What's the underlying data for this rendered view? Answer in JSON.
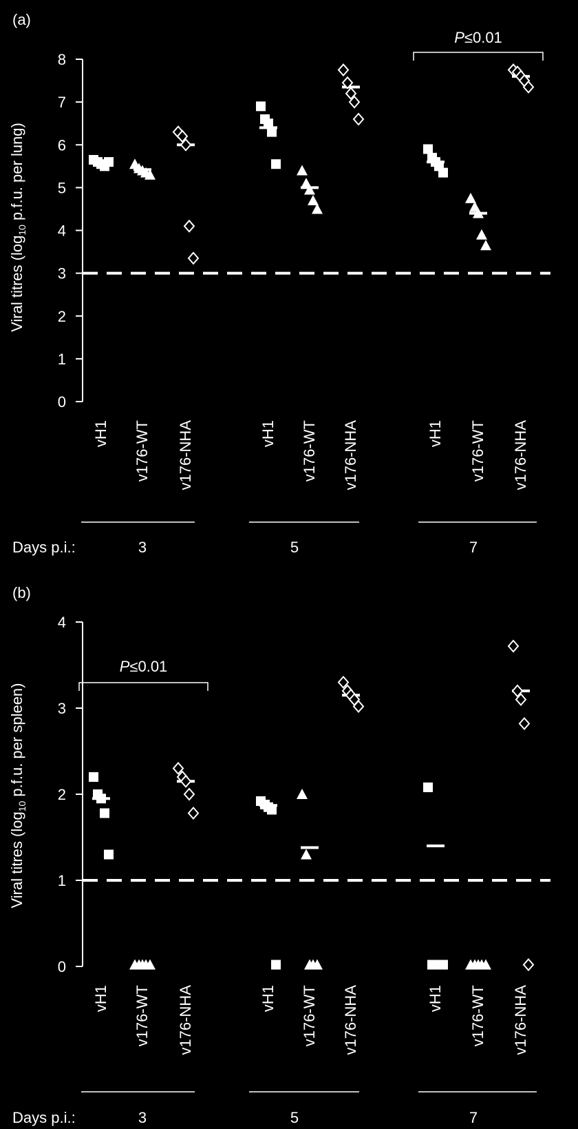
{
  "colors": {
    "background": "#000000",
    "foreground": "#ffffff"
  },
  "chart_data": [
    {
      "type": "scatter",
      "panel_label": "(a)",
      "ylabel_parts": [
        "Viral titres (log",
        "10",
        " p.f.u. per lung)"
      ],
      "ylim": [
        0,
        8
      ],
      "yticks": [
        "0",
        "1",
        "2",
        "3",
        "4",
        "5",
        "6",
        "7",
        "8"
      ],
      "detection_limit": 3,
      "categories": [
        "vH1",
        "v176-WT",
        "v176-NHA",
        "vH1",
        "v176-WT",
        "v176-NHA",
        "vH1",
        "v176-WT",
        "v176-NHA"
      ],
      "days_label": "Days p.i.:",
      "days": [
        "3",
        "5",
        "7"
      ],
      "series": [
        {
          "name": "vH1",
          "marker": "square",
          "groups": [
            {
              "day": "3",
              "points": [
                5.65,
                5.6,
                5.55,
                5.5,
                5.6
              ],
              "mean": 5.58
            },
            {
              "day": "5",
              "points": [
                6.9,
                6.6,
                6.5,
                6.3,
                5.55
              ],
              "mean": 6.4
            },
            {
              "day": "7",
              "points": [
                5.9,
                5.7,
                5.6,
                5.5,
                5.35
              ],
              "mean": 5.6
            }
          ]
        },
        {
          "name": "v176-WT",
          "marker": "triangle",
          "groups": [
            {
              "day": "3",
              "points": [
                5.55,
                5.45,
                5.4,
                5.35,
                5.3
              ],
              "mean": 5.42
            },
            {
              "day": "5",
              "points": [
                5.4,
                5.1,
                4.95,
                4.7,
                4.5
              ],
              "mean": 5.0
            },
            {
              "day": "7",
              "points": [
                4.75,
                4.55,
                4.4,
                3.9,
                3.65
              ],
              "mean": 4.4
            }
          ]
        },
        {
          "name": "v176-NHA",
          "marker": "diamond",
          "groups": [
            {
              "day": "3",
              "points": [
                6.3,
                6.2,
                6.0,
                4.1,
                3.35
              ],
              "mean": 6.0
            },
            {
              "day": "5",
              "points": [
                7.75,
                7.45,
                7.2,
                7.0,
                6.6
              ],
              "mean": 7.35
            },
            {
              "day": "7",
              "points": [
                7.75,
                7.7,
                7.6,
                7.5,
                7.35
              ],
              "mean": 7.6
            }
          ]
        }
      ],
      "significance": {
        "label": "P≤0.01",
        "from": 6,
        "to": 8
      }
    },
    {
      "type": "scatter",
      "panel_label": "(b)",
      "ylabel_parts": [
        "Viral titres (log",
        "10",
        " p.f.u. per spleen)"
      ],
      "ylim": [
        0,
        4
      ],
      "yticks": [
        "0",
        "1",
        "2",
        "3",
        "4"
      ],
      "detection_limit": 1,
      "categories": [
        "vH1",
        "v176-WT",
        "v176-NHA",
        "vH1",
        "v176-WT",
        "v176-NHA",
        "vH1",
        "v176-WT",
        "v176-NHA"
      ],
      "days_label": "Days p.i.:",
      "days": [
        "3",
        "5",
        "7"
      ],
      "series": [
        {
          "name": "vH1",
          "marker": "square",
          "groups": [
            {
              "day": "3",
              "points": [
                2.2,
                2.0,
                1.95,
                1.78,
                1.3
              ],
              "mean": 1.95
            },
            {
              "day": "5",
              "points": [
                1.92,
                1.88,
                1.85,
                1.82,
                0.02
              ],
              "mean": 1.87
            },
            {
              "day": "7",
              "points": [
                2.08,
                0.02,
                0.02,
                0.02,
                0.02
              ],
              "mean": 1.4
            }
          ]
        },
        {
          "name": "v176-WT",
          "marker": "triangle",
          "groups": [
            {
              "day": "3",
              "points": [
                0.02,
                0.02,
                0.02,
                0.02,
                0.02
              ],
              "mean": null
            },
            {
              "day": "5",
              "points": [
                2.0,
                1.3,
                0.02,
                0.02,
                0.02
              ],
              "mean": 1.38
            },
            {
              "day": "7",
              "points": [
                0.02,
                0.02,
                0.02,
                0.02,
                0.02
              ],
              "mean": null
            }
          ]
        },
        {
          "name": "v176-NHA",
          "marker": "diamond",
          "groups": [
            {
              "day": "3",
              "points": [
                2.3,
                2.2,
                2.15,
                2.0,
                1.78
              ],
              "mean": 2.15
            },
            {
              "day": "5",
              "points": [
                3.3,
                3.2,
                3.15,
                3.1,
                3.02
              ],
              "mean": 3.15
            },
            {
              "day": "7",
              "points": [
                3.72,
                3.2,
                3.1,
                2.82,
                0.02
              ],
              "mean": 3.2
            }
          ]
        }
      ],
      "significance": {
        "label": "P≤0.01",
        "from": 0,
        "to": 2
      }
    }
  ]
}
